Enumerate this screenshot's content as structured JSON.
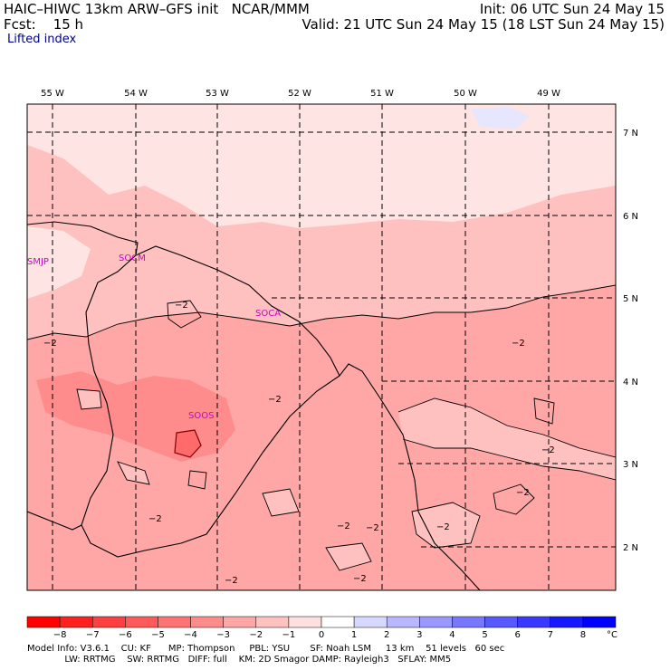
{
  "header": {
    "line1_left": "HAIC–HIWC 13km ARW–GFS init   NCAR/MMM",
    "line1_right": "Init: 06 UTC Sun 24 May 15",
    "line2_left": "Fcst:    15 h",
    "line2_right": "Valid: 21 UTC Sun 24 May 15 (18 LST Sun 24 May 15)",
    "field": "Lifted index"
  },
  "map": {
    "lon_labels": [
      "55 W",
      "54 W",
      "53 W",
      "52 W",
      "51 W",
      "50 W",
      "49 W"
    ],
    "lat_labels": [
      "7 N",
      "6 N",
      "5 N",
      "4 N",
      "3 N",
      "2 N"
    ],
    "stations": [
      "SMJP",
      "SOCM",
      "SOCA",
      "SOOS"
    ],
    "contour_label": "−2",
    "contour_label_count": 12
  },
  "colorbar": {
    "ticks": [
      "−8",
      "−7",
      "−6",
      "−5",
      "−4",
      "−3",
      "−2",
      "−1",
      "0",
      "1",
      "2",
      "3",
      "4",
      "5",
      "6",
      "7",
      "8"
    ],
    "unit": "°C",
    "colors": [
      "#ff0000",
      "#ff2020",
      "#ff4040",
      "#ff5a5a",
      "#ff7373",
      "#ff8c8c",
      "#ffa6a6",
      "#ffc0c0",
      "#ffe0e0",
      "#ffffff",
      "#d8d8ff",
      "#b8b8ff",
      "#9898ff",
      "#7878ff",
      "#5858ff",
      "#3838ff",
      "#1818ff",
      "#0000ff"
    ]
  },
  "footer": {
    "line1": "Model Info: V3.6.1    CU: KF      MP: Thompson     PBL: YSU       SF: Noah LSM     13 km    51 levels   60 sec",
    "line2": "             LW: RRTMG    SW: RRTMG   DIFF: full    KM: 2D Smagor DAMP: Rayleigh3   SFLAY: MM5"
  }
}
